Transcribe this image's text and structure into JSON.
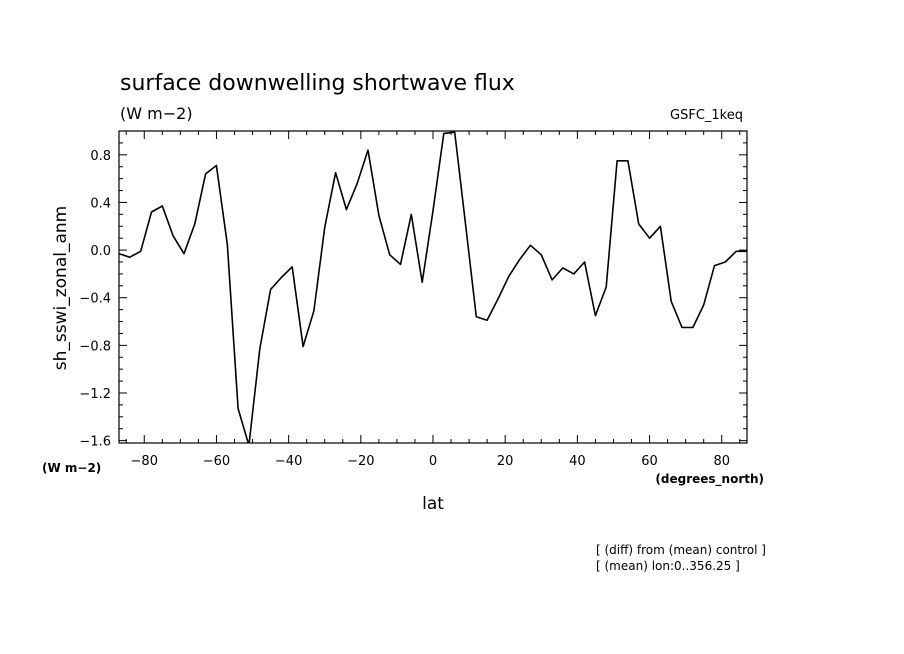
{
  "chart_data": {
    "type": "line",
    "title": "surface downwelling shortwave flux",
    "units_label": "(W m−2)",
    "model_label": "GSFC_1keq",
    "ylabel": "sh_sswi_zonal_anm",
    "yunits": "(W m−2)",
    "xlabel": "lat",
    "xunits": "(degrees_north)",
    "notes": [
      "[ (diff) from (mean) control ]",
      "[ (mean) lon:0..356.25 ]"
    ],
    "xlim": [
      -87,
      87
    ],
    "ylim": [
      -1.62,
      1.0
    ],
    "xticks": [
      -80,
      -60,
      -40,
      -20,
      0,
      20,
      40,
      60,
      80
    ],
    "xtick_labels": [
      "−80",
      "−60",
      "−40",
      "−20",
      "0",
      "20",
      "40",
      "60",
      "80"
    ],
    "yticks": [
      0.8,
      0.4,
      0.0,
      -0.4,
      -0.8,
      -1.2,
      -1.6
    ],
    "ytick_labels": [
      "0.8",
      "0.4",
      "0.0",
      "−0.4",
      "−0.8",
      "−1.2",
      "−1.6"
    ],
    "grid": false,
    "series": [
      {
        "x": [
          -87,
          -84,
          -81,
          -78,
          -75,
          -72,
          -69,
          -66,
          -63,
          -60,
          -57,
          -54,
          -51,
          -48,
          -45,
          -42,
          -39,
          -36,
          -33,
          -30,
          -27,
          -24,
          -21,
          -18,
          -15,
          -12,
          -9,
          -6,
          -3,
          0,
          3,
          6,
          9,
          12,
          15,
          18,
          21,
          24,
          27,
          30,
          33,
          36,
          39,
          42,
          45,
          48,
          51,
          54,
          57,
          60,
          63,
          66,
          69,
          72,
          75,
          78,
          81,
          84,
          87
        ],
        "values": [
          -0.03,
          -0.06,
          -0.01,
          0.32,
          0.37,
          0.12,
          -0.03,
          0.22,
          0.64,
          0.71,
          0.05,
          -1.33,
          -1.64,
          -0.83,
          -0.33,
          -0.23,
          -0.14,
          -0.81,
          -0.51,
          0.19,
          0.65,
          0.34,
          0.56,
          0.84,
          0.29,
          -0.04,
          -0.12,
          0.3,
          -0.27,
          0.33,
          0.98,
          0.99,
          0.22,
          -0.56,
          -0.59,
          -0.41,
          -0.22,
          -0.08,
          0.04,
          -0.04,
          -0.25,
          -0.15,
          -0.2,
          -0.1,
          -0.55,
          -0.31,
          0.75,
          0.75,
          0.22,
          0.1,
          0.2,
          -0.43,
          -0.65,
          -0.65,
          -0.46,
          -0.13,
          -0.1,
          -0.01,
          -0.01
        ],
        "color": "#000000"
      }
    ]
  }
}
